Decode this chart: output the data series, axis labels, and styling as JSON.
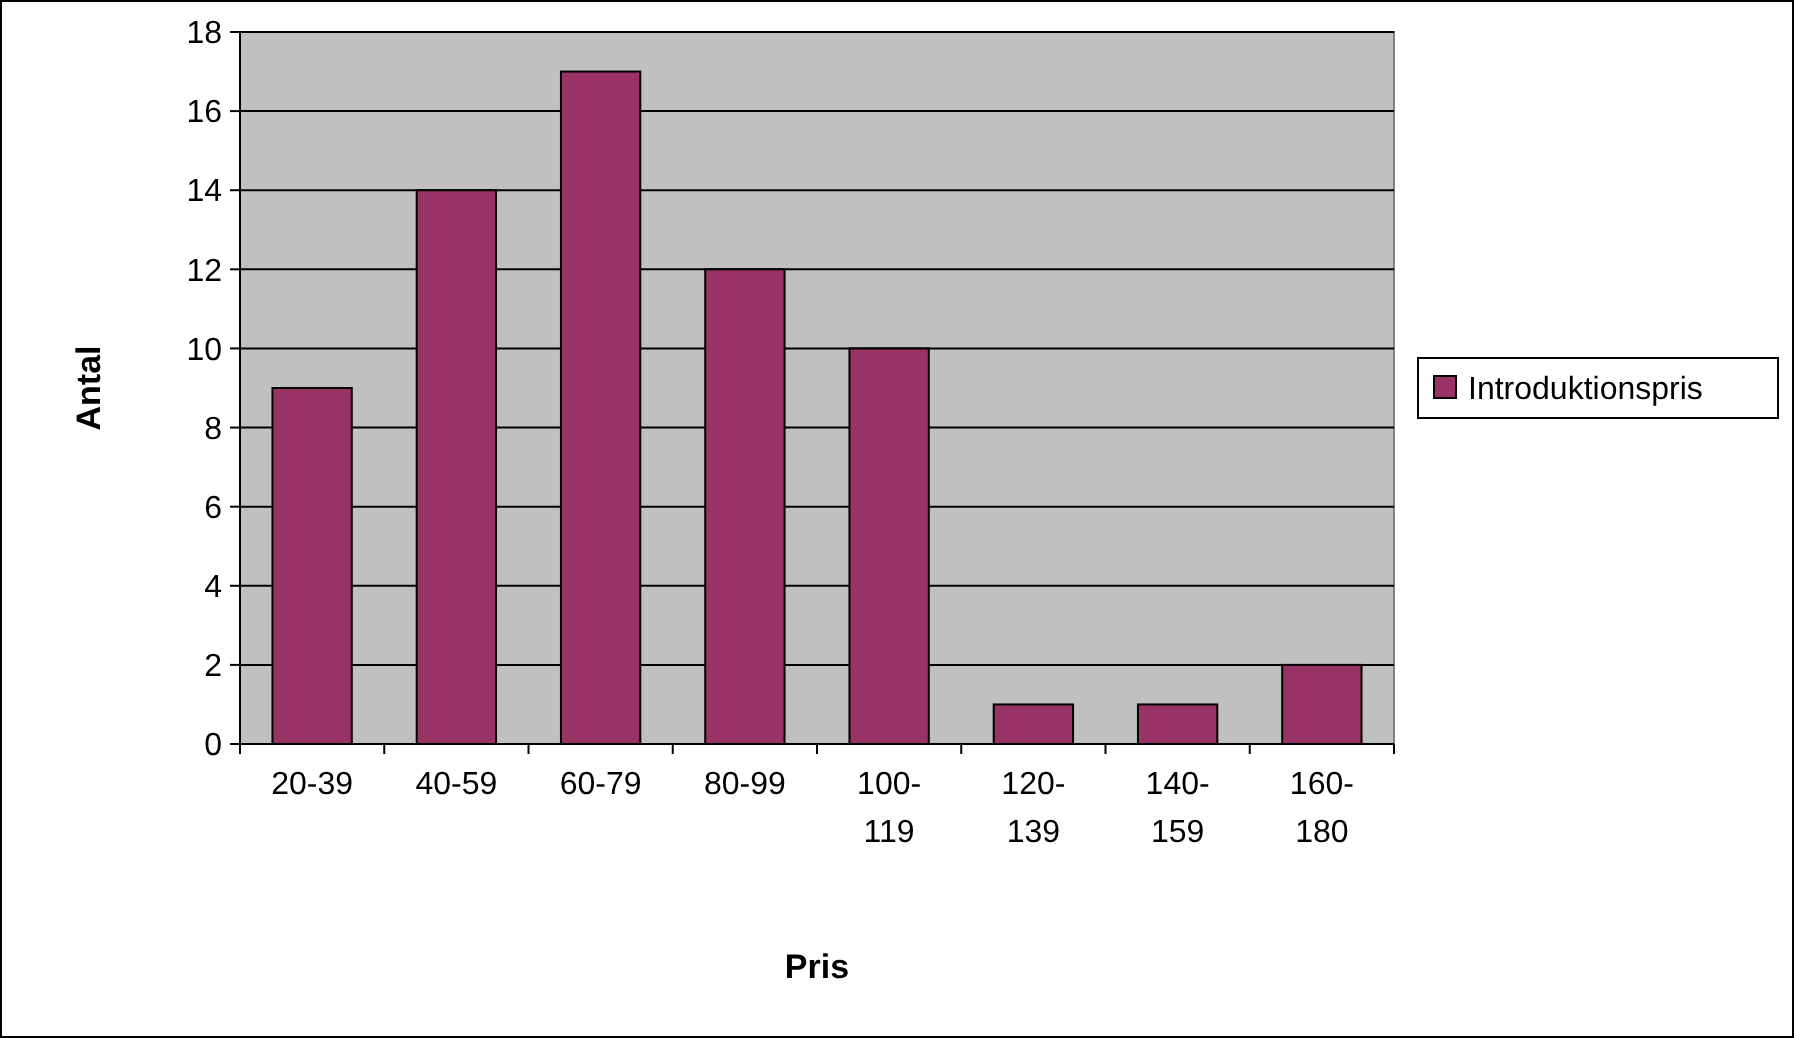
{
  "chart_data": {
    "type": "bar",
    "xlabel": "Pris",
    "ylabel": "Antal",
    "categories": [
      "20-39",
      "40-59",
      "60-79",
      "80-99",
      "100-119",
      "120-139",
      "140-159",
      "160-180"
    ],
    "series": [
      {
        "name": "Introduktionspris",
        "color": "#993366",
        "values": [
          9,
          14,
          17,
          12,
          10,
          1,
          1,
          2
        ]
      }
    ],
    "ylim": [
      0,
      18
    ],
    "yticks": [
      0,
      2,
      4,
      6,
      8,
      10,
      12,
      14,
      16,
      18
    ],
    "grid": "y",
    "legend": "right"
  }
}
